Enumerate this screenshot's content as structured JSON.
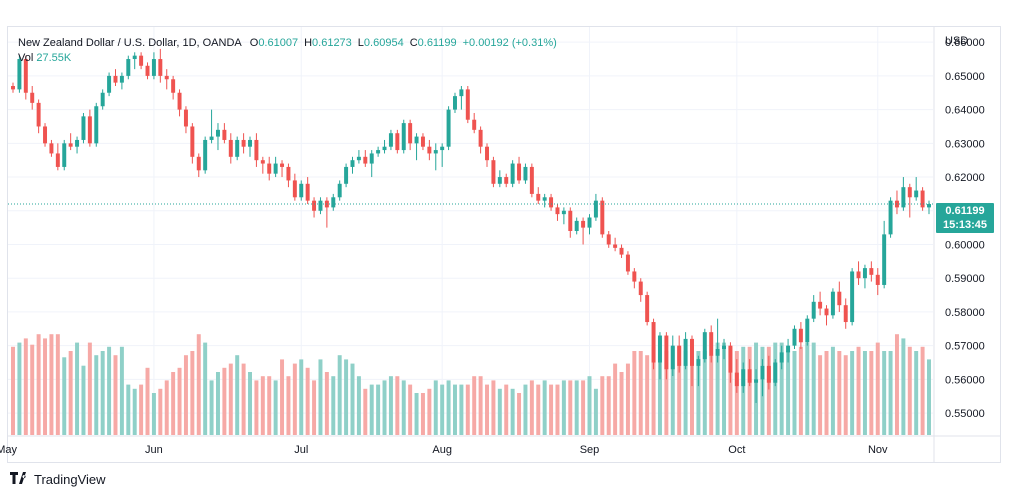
{
  "legend": {
    "symbol": "New Zealand Dollar / U.S. Dollar, 1D, OANDA",
    "o_label": "O",
    "o_value": "0.61007",
    "h_label": "H",
    "h_value": "0.61273",
    "l_label": "L",
    "l_value": "0.60954",
    "c_label": "C",
    "c_value": "0.61199",
    "change": "+0.00192 (+0.31%)",
    "vol_label": "Vol",
    "vol_value": "27.55K"
  },
  "price_tag": {
    "price": "0.61199",
    "countdown": "15:13:45"
  },
  "footer": {
    "brand": "TradingView"
  },
  "colors": {
    "up": "#26a69a",
    "down": "#ef5350",
    "vol_up": "#8fd0c8",
    "vol_down": "#f6a9a6",
    "grid": "#f0f3fa",
    "axis_text": "#131722"
  },
  "chart_data": {
    "type": "candlestick",
    "instrument": "New Zealand Dollar / U.S. Dollar",
    "interval": "1D",
    "source": "OANDA",
    "currency_label": "USD",
    "y_range": [
      0.5435,
      0.6645
    ],
    "y_ticks": [
      "0.66000",
      "0.65000",
      "0.64000",
      "0.63000",
      "0.62000",
      "0.61000",
      "0.60000",
      "0.59000",
      "0.58000",
      "0.57000",
      "0.56000",
      "0.55000"
    ],
    "x_ticks": [
      {
        "label": "May",
        "index": -1
      },
      {
        "label": "Jun",
        "index": 22
      },
      {
        "label": "Jul",
        "index": 45
      },
      {
        "label": "Aug",
        "index": 67
      },
      {
        "label": "Sep",
        "index": 90
      },
      {
        "label": "Oct",
        "index": 113
      },
      {
        "label": "Nov",
        "index": 135
      }
    ],
    "last_price": 0.61199,
    "ohlc": [
      [
        0.647,
        0.648,
        0.645,
        0.646
      ],
      [
        0.646,
        0.656,
        0.645,
        0.655
      ],
      [
        0.655,
        0.656,
        0.643,
        0.645
      ],
      [
        0.645,
        0.647,
        0.64,
        0.642
      ],
      [
        0.642,
        0.643,
        0.633,
        0.635
      ],
      [
        0.635,
        0.636,
        0.629,
        0.63
      ],
      [
        0.63,
        0.631,
        0.626,
        0.627
      ],
      [
        0.627,
        0.63,
        0.622,
        0.623
      ],
      [
        0.623,
        0.631,
        0.622,
        0.63
      ],
      [
        0.63,
        0.633,
        0.628,
        0.629
      ],
      [
        0.629,
        0.632,
        0.627,
        0.631
      ],
      [
        0.631,
        0.639,
        0.63,
        0.638
      ],
      [
        0.638,
        0.64,
        0.629,
        0.63
      ],
      [
        0.63,
        0.642,
        0.629,
        0.641
      ],
      [
        0.641,
        0.646,
        0.64,
        0.645
      ],
      [
        0.645,
        0.651,
        0.644,
        0.65
      ],
      [
        0.65,
        0.652,
        0.647,
        0.648
      ],
      [
        0.648,
        0.651,
        0.646,
        0.65
      ],
      [
        0.65,
        0.656,
        0.649,
        0.655
      ],
      [
        0.655,
        0.657,
        0.652,
        0.656
      ],
      [
        0.656,
        0.657,
        0.652,
        0.653
      ],
      [
        0.653,
        0.654,
        0.649,
        0.65
      ],
      [
        0.65,
        0.657,
        0.649,
        0.655
      ],
      [
        0.655,
        0.658,
        0.648,
        0.65
      ],
      [
        0.65,
        0.652,
        0.646,
        0.649
      ],
      [
        0.649,
        0.65,
        0.643,
        0.645
      ],
      [
        0.645,
        0.646,
        0.638,
        0.64
      ],
      [
        0.64,
        0.641,
        0.633,
        0.635
      ],
      [
        0.635,
        0.636,
        0.624,
        0.626
      ],
      [
        0.626,
        0.627,
        0.62,
        0.622
      ],
      [
        0.622,
        0.632,
        0.621,
        0.631
      ],
      [
        0.631,
        0.64,
        0.63,
        0.632
      ],
      [
        0.632,
        0.636,
        0.628,
        0.634
      ],
      [
        0.634,
        0.636,
        0.63,
        0.631
      ],
      [
        0.631,
        0.633,
        0.624,
        0.626
      ],
      [
        0.626,
        0.632,
        0.625,
        0.631
      ],
      [
        0.631,
        0.633,
        0.627,
        0.629
      ],
      [
        0.629,
        0.632,
        0.626,
        0.631
      ],
      [
        0.631,
        0.633,
        0.623,
        0.625
      ],
      [
        0.625,
        0.626,
        0.621,
        0.624
      ],
      [
        0.624,
        0.626,
        0.619,
        0.621
      ],
      [
        0.621,
        0.626,
        0.62,
        0.624
      ],
      [
        0.624,
        0.625,
        0.62,
        0.623
      ],
      [
        0.623,
        0.624,
        0.617,
        0.619
      ],
      [
        0.619,
        0.621,
        0.613,
        0.614
      ],
      [
        0.614,
        0.619,
        0.613,
        0.618
      ],
      [
        0.618,
        0.62,
        0.612,
        0.613
      ],
      [
        0.613,
        0.614,
        0.608,
        0.61
      ],
      [
        0.61,
        0.614,
        0.609,
        0.613
      ],
      [
        0.613,
        0.614,
        0.605,
        0.611
      ],
      [
        0.611,
        0.615,
        0.61,
        0.614
      ],
      [
        0.614,
        0.619,
        0.613,
        0.618
      ],
      [
        0.618,
        0.624,
        0.617,
        0.623
      ],
      [
        0.623,
        0.626,
        0.621,
        0.625
      ],
      [
        0.625,
        0.628,
        0.624,
        0.626
      ],
      [
        0.626,
        0.628,
        0.623,
        0.624
      ],
      [
        0.624,
        0.628,
        0.62,
        0.627
      ],
      [
        0.627,
        0.629,
        0.626,
        0.628
      ],
      [
        0.628,
        0.631,
        0.627,
        0.629
      ],
      [
        0.629,
        0.634,
        0.628,
        0.633
      ],
      [
        0.633,
        0.634,
        0.627,
        0.628
      ],
      [
        0.628,
        0.637,
        0.627,
        0.636
      ],
      [
        0.636,
        0.637,
        0.628,
        0.63
      ],
      [
        0.63,
        0.633,
        0.625,
        0.632
      ],
      [
        0.632,
        0.633,
        0.628,
        0.629
      ],
      [
        0.629,
        0.631,
        0.625,
        0.627
      ],
      [
        0.627,
        0.63,
        0.622,
        0.628
      ],
      [
        0.628,
        0.63,
        0.623,
        0.629
      ],
      [
        0.629,
        0.641,
        0.628,
        0.64
      ],
      [
        0.64,
        0.645,
        0.639,
        0.644
      ],
      [
        0.644,
        0.647,
        0.64,
        0.646
      ],
      [
        0.646,
        0.647,
        0.636,
        0.637
      ],
      [
        0.637,
        0.639,
        0.633,
        0.634
      ],
      [
        0.634,
        0.635,
        0.627,
        0.629
      ],
      [
        0.629,
        0.63,
        0.623,
        0.625
      ],
      [
        0.625,
        0.626,
        0.617,
        0.618
      ],
      [
        0.618,
        0.622,
        0.617,
        0.62
      ],
      [
        0.62,
        0.621,
        0.617,
        0.618
      ],
      [
        0.618,
        0.625,
        0.617,
        0.624
      ],
      [
        0.624,
        0.626,
        0.618,
        0.619
      ],
      [
        0.619,
        0.624,
        0.618,
        0.623
      ],
      [
        0.623,
        0.624,
        0.614,
        0.615
      ],
      [
        0.615,
        0.617,
        0.612,
        0.613
      ],
      [
        0.613,
        0.615,
        0.611,
        0.614
      ],
      [
        0.614,
        0.615,
        0.61,
        0.611
      ],
      [
        0.611,
        0.612,
        0.607,
        0.609
      ],
      [
        0.609,
        0.611,
        0.606,
        0.61
      ],
      [
        0.61,
        0.611,
        0.602,
        0.604
      ],
      [
        0.604,
        0.608,
        0.603,
        0.607
      ],
      [
        0.607,
        0.608,
        0.6,
        0.605
      ],
      [
        0.605,
        0.609,
        0.603,
        0.608
      ],
      [
        0.608,
        0.615,
        0.607,
        0.613
      ],
      [
        0.613,
        0.614,
        0.602,
        0.603
      ],
      [
        0.603,
        0.604,
        0.599,
        0.6
      ],
      [
        0.6,
        0.602,
        0.598,
        0.599
      ],
      [
        0.599,
        0.6,
        0.596,
        0.597
      ],
      [
        0.597,
        0.598,
        0.591,
        0.592
      ],
      [
        0.592,
        0.593,
        0.587,
        0.589
      ],
      [
        0.589,
        0.59,
        0.583,
        0.585
      ],
      [
        0.585,
        0.586,
        0.576,
        0.577
      ],
      [
        0.577,
        0.578,
        0.563,
        0.565
      ],
      [
        0.565,
        0.574,
        0.56,
        0.573
      ],
      [
        0.573,
        0.574,
        0.56,
        0.563
      ],
      [
        0.563,
        0.573,
        0.561,
        0.57
      ],
      [
        0.57,
        0.573,
        0.562,
        0.564
      ],
      [
        0.564,
        0.574,
        0.563,
        0.572
      ],
      [
        0.572,
        0.573,
        0.558,
        0.564
      ],
      [
        0.564,
        0.567,
        0.558,
        0.566
      ],
      [
        0.566,
        0.575,
        0.565,
        0.574
      ],
      [
        0.574,
        0.576,
        0.565,
        0.567
      ],
      [
        0.567,
        0.578,
        0.565,
        0.569
      ],
      [
        0.569,
        0.572,
        0.566,
        0.57
      ],
      [
        0.57,
        0.571,
        0.559,
        0.562
      ],
      [
        0.562,
        0.566,
        0.556,
        0.558
      ],
      [
        0.558,
        0.565,
        0.556,
        0.563
      ],
      [
        0.563,
        0.566,
        0.558,
        0.559
      ],
      [
        0.559,
        0.563,
        0.553,
        0.56
      ],
      [
        0.56,
        0.566,
        0.555,
        0.564
      ],
      [
        0.564,
        0.567,
        0.557,
        0.559
      ],
      [
        0.559,
        0.566,
        0.558,
        0.565
      ],
      [
        0.565,
        0.57,
        0.563,
        0.568
      ],
      [
        0.568,
        0.572,
        0.565,
        0.57
      ],
      [
        0.57,
        0.576,
        0.569,
        0.575
      ],
      [
        0.575,
        0.577,
        0.569,
        0.571
      ],
      [
        0.571,
        0.579,
        0.57,
        0.578
      ],
      [
        0.578,
        0.585,
        0.577,
        0.583
      ],
      [
        0.583,
        0.586,
        0.579,
        0.581
      ],
      [
        0.581,
        0.582,
        0.576,
        0.579
      ],
      [
        0.579,
        0.587,
        0.578,
        0.586
      ],
      [
        0.586,
        0.589,
        0.58,
        0.582
      ],
      [
        0.582,
        0.584,
        0.575,
        0.577
      ],
      [
        0.577,
        0.593,
        0.576,
        0.592
      ],
      [
        0.592,
        0.595,
        0.588,
        0.59
      ],
      [
        0.59,
        0.594,
        0.587,
        0.593
      ],
      [
        0.593,
        0.595,
        0.589,
        0.591
      ],
      [
        0.591,
        0.593,
        0.585,
        0.588
      ],
      [
        0.588,
        0.607,
        0.587,
        0.603
      ],
      [
        0.603,
        0.614,
        0.602,
        0.613
      ],
      [
        0.613,
        0.616,
        0.609,
        0.611
      ],
      [
        0.611,
        0.62,
        0.61,
        0.617
      ],
      [
        0.617,
        0.618,
        0.608,
        0.614
      ],
      [
        0.614,
        0.62,
        0.613,
        0.616
      ],
      [
        0.616,
        0.617,
        0.61,
        0.611
      ],
      [
        0.611,
        0.613,
        0.609,
        0.612
      ]
    ],
    "volume": [
      42,
      44,
      46,
      43,
      48,
      46,
      48,
      48,
      37,
      40,
      44,
      33,
      44,
      38,
      40,
      42,
      38,
      42,
      24,
      22,
      24,
      32,
      20,
      22,
      26,
      30,
      32,
      38,
      40,
      48,
      44,
      26,
      30,
      32,
      34,
      38,
      34,
      30,
      26,
      28,
      28,
      26,
      36,
      28,
      34,
      36,
      32,
      26,
      36,
      30,
      28,
      38,
      36,
      34,
      28,
      22,
      24,
      24,
      26,
      28,
      28,
      26,
      24,
      20,
      20,
      22,
      26,
      24,
      26,
      24,
      24,
      24,
      28,
      28,
      24,
      26,
      22,
      24,
      22,
      20,
      24,
      26,
      24,
      26,
      24,
      24,
      26,
      26,
      26,
      26,
      28,
      22,
      28,
      28,
      34,
      30,
      34,
      40,
      40,
      38,
      42,
      46,
      40,
      42,
      42,
      40,
      42,
      40,
      40,
      38,
      44,
      44,
      42,
      40,
      42,
      42,
      44,
      42,
      42,
      44,
      44,
      40,
      40,
      42,
      44,
      44,
      38,
      40,
      42,
      40,
      38,
      40,
      42,
      40,
      40,
      44,
      40,
      40,
      48,
      46,
      42,
      40,
      42,
      36,
      34,
      10
    ]
  }
}
